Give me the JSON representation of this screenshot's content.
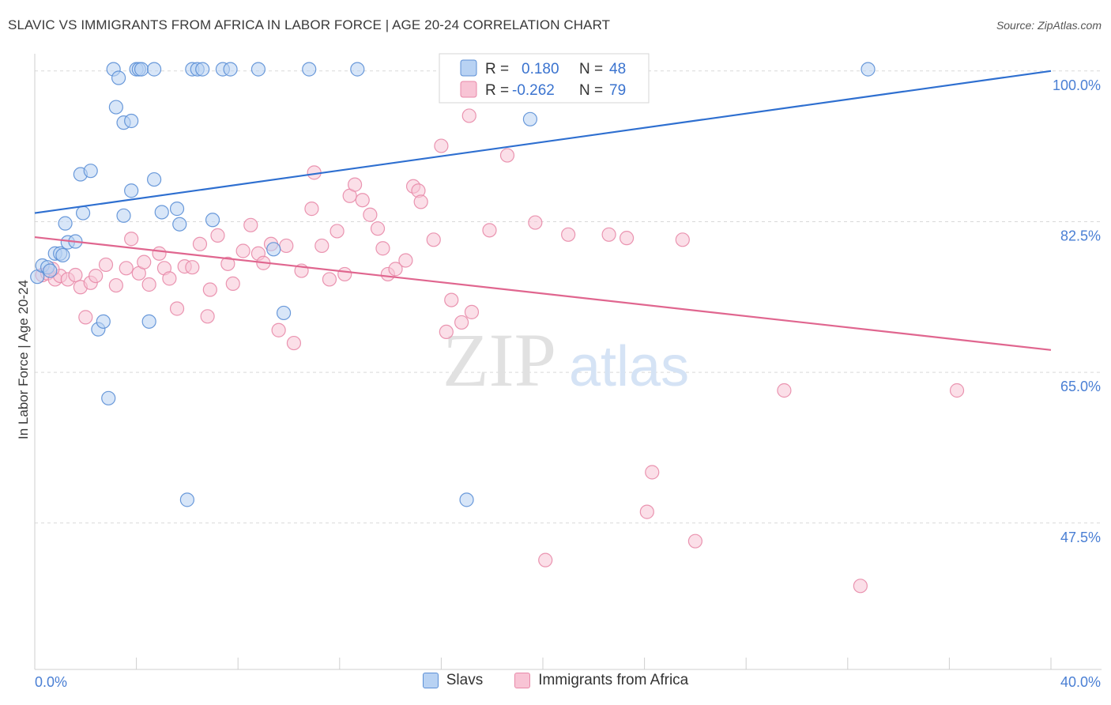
{
  "header": {
    "title": "SLAVIC VS IMMIGRANTS FROM AFRICA IN LABOR FORCE | AGE 20-24 CORRELATION CHART",
    "source": "Source: ZipAtlas.com"
  },
  "watermark": {
    "zip": "ZIP",
    "atlas": "atlas"
  },
  "colors": {
    "blue_fill": "#b8d2f3",
    "blue_stroke": "#5b8fd6",
    "blue_line": "#2e6fd0",
    "pink_fill": "#f8c4d5",
    "pink_stroke": "#e889a9",
    "pink_line": "#e0668f",
    "axis_text": "#4a7fd4",
    "grid": "#d9d9d9"
  },
  "legend_top": {
    "rows": [
      {
        "r_label": "R =",
        "r_value": "0.180",
        "n_label": "N =",
        "n_value": "48"
      },
      {
        "r_label": "R =",
        "r_value": "-0.262",
        "n_label": "N =",
        "n_value": "79"
      }
    ]
  },
  "legend_bottom": [
    "Slavs",
    "Immigrants from Africa"
  ],
  "chart_data": {
    "type": "scatter",
    "title": "SLAVIC VS IMMIGRANTS FROM AFRICA IN LABOR FORCE | AGE 20-24 CORRELATION CHART",
    "xlabel": "",
    "ylabel": "In Labor Force | Age 20-24",
    "xlim": [
      0,
      40
    ],
    "ylim": [
      30.5,
      102
    ],
    "x_tick_labels": [
      "0.0%",
      "40.0%"
    ],
    "y_ticks": [
      {
        "value": 100,
        "label": "100.0%"
      },
      {
        "value": 82.5,
        "label": "82.5%"
      },
      {
        "value": 65,
        "label": "65.0%"
      },
      {
        "value": 47.5,
        "label": "47.5%"
      }
    ],
    "grid": true,
    "legend": "top-center",
    "series": [
      {
        "name": "Slavs",
        "r": 0.18,
        "n": 48,
        "trend": {
          "x": [
            0,
            40
          ],
          "y": [
            83.5,
            100
          ]
        },
        "points": [
          [
            0.1,
            76.1
          ],
          [
            0.3,
            77.4
          ],
          [
            0.5,
            77.2
          ],
          [
            0.6,
            76.8
          ],
          [
            0.8,
            78.8
          ],
          [
            1.0,
            78.8
          ],
          [
            1.1,
            78.6
          ],
          [
            1.3,
            80.1
          ],
          [
            1.6,
            80.2
          ],
          [
            1.2,
            82.3
          ],
          [
            1.9,
            83.5
          ],
          [
            1.8,
            88.0
          ],
          [
            2.2,
            88.4
          ],
          [
            2.5,
            70.0
          ],
          [
            2.7,
            70.9
          ],
          [
            2.9,
            62.0
          ],
          [
            3.1,
            100.2
          ],
          [
            3.2,
            95.8
          ],
          [
            3.3,
            99.2
          ],
          [
            3.5,
            94.0
          ],
          [
            3.5,
            83.2
          ],
          [
            3.8,
            94.2
          ],
          [
            3.8,
            86.1
          ],
          [
            4.0,
            100.2
          ],
          [
            4.1,
            100.2
          ],
          [
            4.2,
            100.2
          ],
          [
            4.7,
            100.2
          ],
          [
            4.7,
            87.4
          ],
          [
            4.5,
            70.9
          ],
          [
            5.0,
            83.6
          ],
          [
            5.6,
            84.0
          ],
          [
            5.7,
            82.2
          ],
          [
            6.2,
            100.2
          ],
          [
            6.4,
            100.2
          ],
          [
            6.6,
            100.2
          ],
          [
            7.0,
            82.7
          ],
          [
            7.4,
            100.2
          ],
          [
            7.7,
            100.2
          ],
          [
            8.8,
            100.2
          ],
          [
            9.4,
            79.3
          ],
          [
            9.8,
            71.9
          ],
          [
            10.8,
            100.2
          ],
          [
            12.7,
            100.2
          ],
          [
            6.0,
            50.2
          ],
          [
            17.0,
            50.2
          ],
          [
            19.5,
            94.4
          ],
          [
            32.8,
            100.2
          ],
          [
            22.0,
            100.2
          ]
        ]
      },
      {
        "name": "Immigrants from Africa",
        "r": -0.262,
        "n": 79,
        "trend": {
          "x": [
            0,
            40
          ],
          "y": [
            80.7,
            67.6
          ]
        },
        "points": [
          [
            0.3,
            76.3
          ],
          [
            0.5,
            76.5
          ],
          [
            0.8,
            75.8
          ],
          [
            1.0,
            76.2
          ],
          [
            1.3,
            75.8
          ],
          [
            1.6,
            76.3
          ],
          [
            1.8,
            74.9
          ],
          [
            2.2,
            75.4
          ],
          [
            2.4,
            76.2
          ],
          [
            2.8,
            77.5
          ],
          [
            3.2,
            75.1
          ],
          [
            3.6,
            77.1
          ],
          [
            3.8,
            80.5
          ],
          [
            4.1,
            76.5
          ],
          [
            4.3,
            77.8
          ],
          [
            4.5,
            75.2
          ],
          [
            4.9,
            78.8
          ],
          [
            5.1,
            77.1
          ],
          [
            5.3,
            75.9
          ],
          [
            5.6,
            72.4
          ],
          [
            5.9,
            77.3
          ],
          [
            6.2,
            77.2
          ],
          [
            6.5,
            79.9
          ],
          [
            6.8,
            71.5
          ],
          [
            6.9,
            74.6
          ],
          [
            7.2,
            80.9
          ],
          [
            7.6,
            77.6
          ],
          [
            7.8,
            75.3
          ],
          [
            8.2,
            79.1
          ],
          [
            8.5,
            82.1
          ],
          [
            8.8,
            78.8
          ],
          [
            9.0,
            77.7
          ],
          [
            9.3,
            79.9
          ],
          [
            9.6,
            69.9
          ],
          [
            9.9,
            79.7
          ],
          [
            10.2,
            68.4
          ],
          [
            10.5,
            76.8
          ],
          [
            10.9,
            84.0
          ],
          [
            11.0,
            88.2
          ],
          [
            11.3,
            79.7
          ],
          [
            11.6,
            75.8
          ],
          [
            11.9,
            81.4
          ],
          [
            12.2,
            76.4
          ],
          [
            12.4,
            85.5
          ],
          [
            12.6,
            86.8
          ],
          [
            12.9,
            85.0
          ],
          [
            13.2,
            83.3
          ],
          [
            13.5,
            81.7
          ],
          [
            13.7,
            79.4
          ],
          [
            13.9,
            76.4
          ],
          [
            14.2,
            77.0
          ],
          [
            14.6,
            78.0
          ],
          [
            14.9,
            86.6
          ],
          [
            15.1,
            86.1
          ],
          [
            15.2,
            84.8
          ],
          [
            15.7,
            80.4
          ],
          [
            16.0,
            91.3
          ],
          [
            16.2,
            69.7
          ],
          [
            16.4,
            73.4
          ],
          [
            16.8,
            70.8
          ],
          [
            17.1,
            94.8
          ],
          [
            17.2,
            72.0
          ],
          [
            17.9,
            81.5
          ],
          [
            18.6,
            90.2
          ],
          [
            19.7,
            82.4
          ],
          [
            20.1,
            43.2
          ],
          [
            21.0,
            81.0
          ],
          [
            21.8,
            100.2
          ],
          [
            22.6,
            81.0
          ],
          [
            23.3,
            80.6
          ],
          [
            24.1,
            48.8
          ],
          [
            24.3,
            53.4
          ],
          [
            25.5,
            80.4
          ],
          [
            26.0,
            45.4
          ],
          [
            29.5,
            62.9
          ],
          [
            32.5,
            40.2
          ],
          [
            36.3,
            62.9
          ],
          [
            0.7,
            77.0
          ],
          [
            2.0,
            71.4
          ]
        ]
      }
    ]
  }
}
